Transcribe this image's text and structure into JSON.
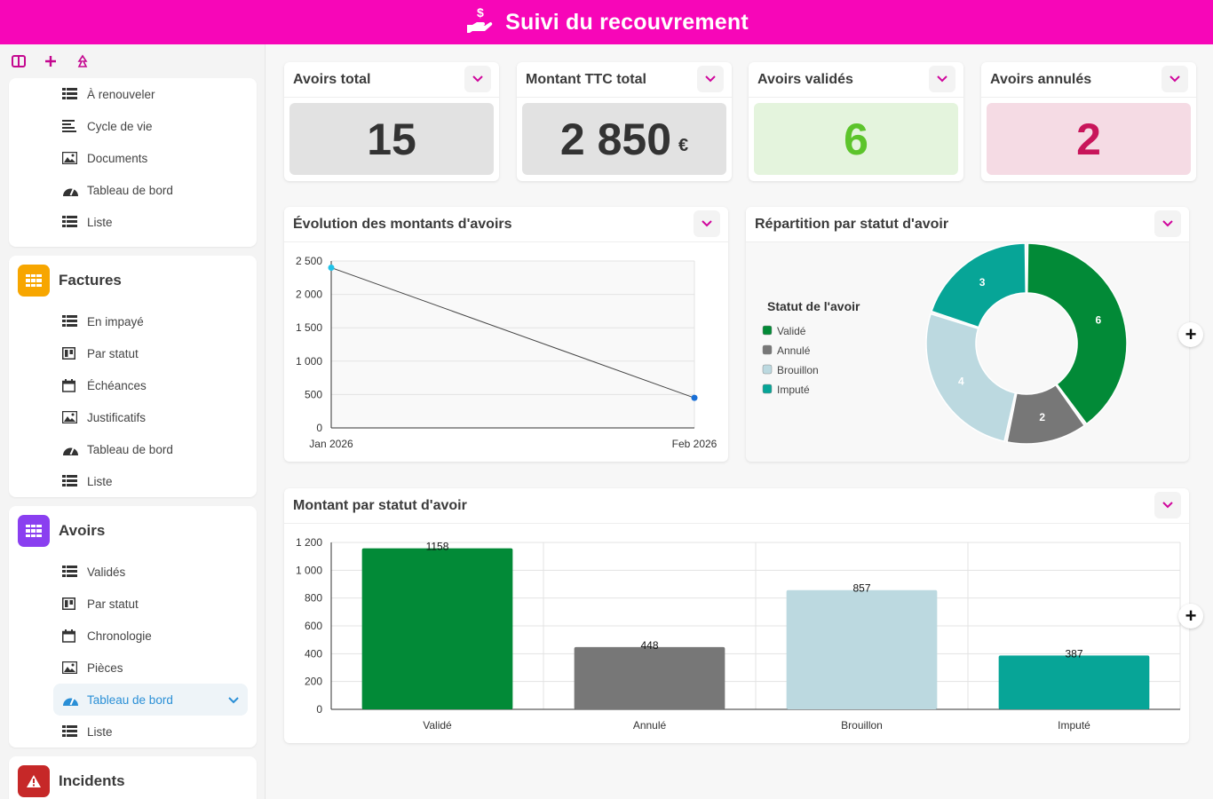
{
  "header": {
    "title": "Suivi du recouvrement"
  },
  "sidebar": {
    "top_group_items": [
      {
        "label": "À renouveler",
        "icon": "list-icon"
      },
      {
        "label": "Cycle de vie",
        "icon": "lines-icon"
      },
      {
        "label": "Documents",
        "icon": "image-icon"
      },
      {
        "label": "Tableau de bord",
        "icon": "dashboard-icon"
      },
      {
        "label": "Liste",
        "icon": "list-icon"
      }
    ],
    "factures": {
      "title": "Factures",
      "color": "#f7a600",
      "items": [
        {
          "label": "En impayé"
        },
        {
          "label": "Par statut"
        },
        {
          "label": "Échéances"
        },
        {
          "label": "Justificatifs"
        },
        {
          "label": "Tableau de bord"
        },
        {
          "label": "Liste"
        }
      ]
    },
    "avoirs": {
      "title": "Avoirs",
      "color": "#8a3ff0",
      "items": [
        {
          "label": "Validés"
        },
        {
          "label": "Par statut"
        },
        {
          "label": "Chronologie"
        },
        {
          "label": "Pièces"
        },
        {
          "label": "Tableau de bord"
        },
        {
          "label": "Liste"
        }
      ]
    },
    "incidents": {
      "title": "Incidents",
      "color": "#c62828"
    }
  },
  "kpis": [
    {
      "title": "Avoirs total",
      "value": "15",
      "unit": "",
      "bg": "#e2e2e2",
      "fg": "#333333"
    },
    {
      "title": "Montant TTC total",
      "value": "2 850",
      "unit": "€",
      "bg": "#e2e2e2",
      "fg": "#333333"
    },
    {
      "title": "Avoirs validés",
      "value": "6",
      "unit": "",
      "bg": "#e4f4dd",
      "fg": "#5cc42b"
    },
    {
      "title": "Avoirs annulés",
      "value": "2",
      "unit": "",
      "bg": "#f5dbe4",
      "fg": "#c8155a"
    }
  ],
  "line_card": {
    "title": "Évolution des montants d'avoirs"
  },
  "donut_card": {
    "title": "Répartition par statut d'avoir",
    "legend_title": "Statut de l'avoir"
  },
  "bar_card": {
    "title": "Montant par statut d'avoir"
  },
  "chart_data": [
    {
      "type": "line",
      "x": [
        "Jan 2026",
        "Feb 2026"
      ],
      "series": [
        {
          "values": [
            2400,
            450
          ]
        }
      ],
      "ylim": [
        0,
        2500
      ],
      "yticks": [
        "0",
        "500",
        "1 000",
        "1 500",
        "2 000",
        "2 500"
      ],
      "grid": true
    },
    {
      "type": "pie",
      "donut": true,
      "legend_title": "Statut de l'avoir",
      "legend_position": "left",
      "categories": [
        "Validé",
        "Annulé",
        "Brouillon",
        "Imputé"
      ],
      "values": [
        6,
        2,
        4,
        3
      ],
      "colors": [
        "#028a37",
        "#777777",
        "#bcd9e0",
        "#07a597"
      ]
    },
    {
      "type": "bar",
      "categories": [
        "Validé",
        "Annulé",
        "Brouillon",
        "Imputé"
      ],
      "values": [
        1158,
        448,
        857,
        387
      ],
      "colors": [
        "#028a37",
        "#777777",
        "#bcd9e0",
        "#07a597"
      ],
      "ylim": [
        0,
        1200
      ],
      "yticks": [
        "0",
        "200",
        "400",
        "600",
        "800",
        "1 000",
        "1 200"
      ],
      "grid": true
    }
  ]
}
